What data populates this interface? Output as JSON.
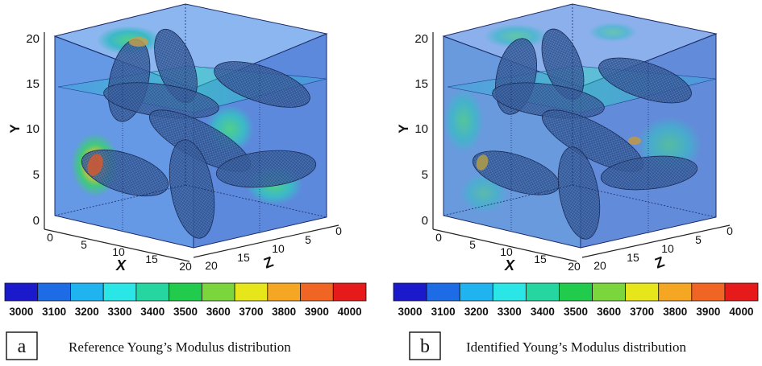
{
  "panels": [
    {
      "id": "a",
      "letter": "a",
      "caption": "Reference Young’s Modulus distribution",
      "axes": {
        "y_label": "Y",
        "x_label": "X",
        "z_label": "Z",
        "y_ticks": [
          "0",
          "5",
          "10",
          "15",
          "20"
        ],
        "x_ticks": [
          "0",
          "5",
          "10",
          "15",
          "20"
        ],
        "z_ticks": [
          "20",
          "15",
          "10",
          "5",
          "0"
        ]
      }
    },
    {
      "id": "b",
      "letter": "b",
      "caption": "Identified Young’s Modulus distribution",
      "axes": {
        "y_label": "Y",
        "x_label": "X",
        "z_label": "Z",
        "y_ticks": [
          "0",
          "5",
          "10",
          "15",
          "20"
        ],
        "x_ticks": [
          "0",
          "5",
          "10",
          "15",
          "20"
        ],
        "z_ticks": [
          "20",
          "15",
          "10",
          "5",
          "0"
        ]
      }
    }
  ],
  "colorbar": {
    "labels": [
      "3000",
      "3100",
      "3200",
      "3300",
      "3400",
      "3500",
      "3600",
      "3700",
      "3800",
      "3900",
      "4000"
    ],
    "colors": [
      "#1a1acc",
      "#1e6be6",
      "#1fb4f0",
      "#2ae6e6",
      "#25d6a0",
      "#21cc4d",
      "#7ad63c",
      "#e6e61a",
      "#f5a623",
      "#f06424",
      "#e61a1a"
    ]
  },
  "colors": {
    "box_face": "#3b6fd4",
    "box_edge": "#1a2a66",
    "inclusion": "#1f3f7a",
    "low": "#2a3fe0",
    "high": "#d92626"
  }
}
